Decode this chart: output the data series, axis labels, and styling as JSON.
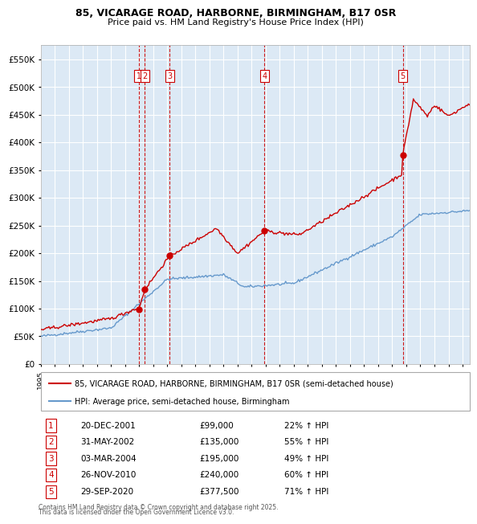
{
  "title1": "85, VICARAGE ROAD, HARBORNE, BIRMINGHAM, B17 0SR",
  "title2": "Price paid vs. HM Land Registry's House Price Index (HPI)",
  "legend_line1": "85, VICARAGE ROAD, HARBORNE, BIRMINGHAM, B17 0SR (semi-detached house)",
  "legend_line2": "HPI: Average price, semi-detached house, Birmingham",
  "footer1": "Contains HM Land Registry data © Crown copyright and database right 2025.",
  "footer2": "This data is licensed under the Open Government Licence v3.0.",
  "sale_dates": [
    2001.97,
    2002.41,
    2004.17,
    2010.9,
    2020.75
  ],
  "sale_prices": [
    99000,
    135000,
    195000,
    240000,
    377500
  ],
  "sale_labels": [
    "1",
    "2",
    "3",
    "4",
    "5"
  ],
  "table_rows": [
    [
      "1",
      "20-DEC-2001",
      "£99,000",
      "22% ↑ HPI"
    ],
    [
      "2",
      "31-MAY-2002",
      "£135,000",
      "55% ↑ HPI"
    ],
    [
      "3",
      "03-MAR-2004",
      "£195,000",
      "49% ↑ HPI"
    ],
    [
      "4",
      "26-NOV-2010",
      "£240,000",
      "60% ↑ HPI"
    ],
    [
      "5",
      "29-SEP-2020",
      "£377,500",
      "71% ↑ HPI"
    ]
  ],
  "red_color": "#cc0000",
  "blue_color": "#6699cc",
  "bg_color": "#dce9f5",
  "grid_color": "#ffffff",
  "ylim": [
    0,
    575000
  ],
  "xlim_start": 1995,
  "xlim_end": 2025.5
}
